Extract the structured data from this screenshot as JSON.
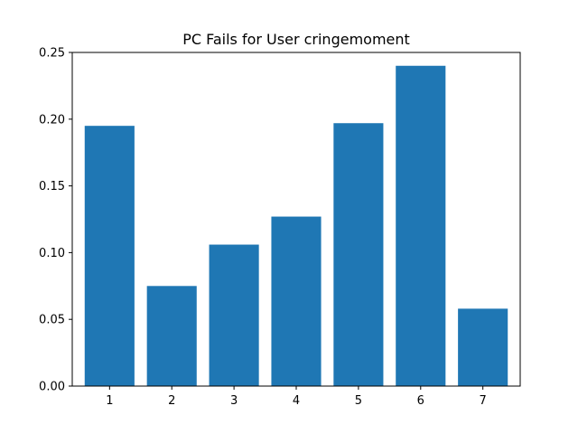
{
  "chart_data": {
    "type": "bar",
    "title": "PC Fails for User cringemoment",
    "xlabel": "",
    "ylabel": "",
    "categories": [
      "1",
      "2",
      "3",
      "4",
      "5",
      "6",
      "7"
    ],
    "values": [
      0.195,
      0.075,
      0.106,
      0.127,
      0.197,
      0.24,
      0.058
    ],
    "ylim": [
      0,
      0.25
    ],
    "yticks": [
      "0.00",
      "0.05",
      "0.10",
      "0.15",
      "0.20",
      "0.25"
    ],
    "grid": false,
    "legend": "none",
    "bar_color": "#1f77b4"
  }
}
